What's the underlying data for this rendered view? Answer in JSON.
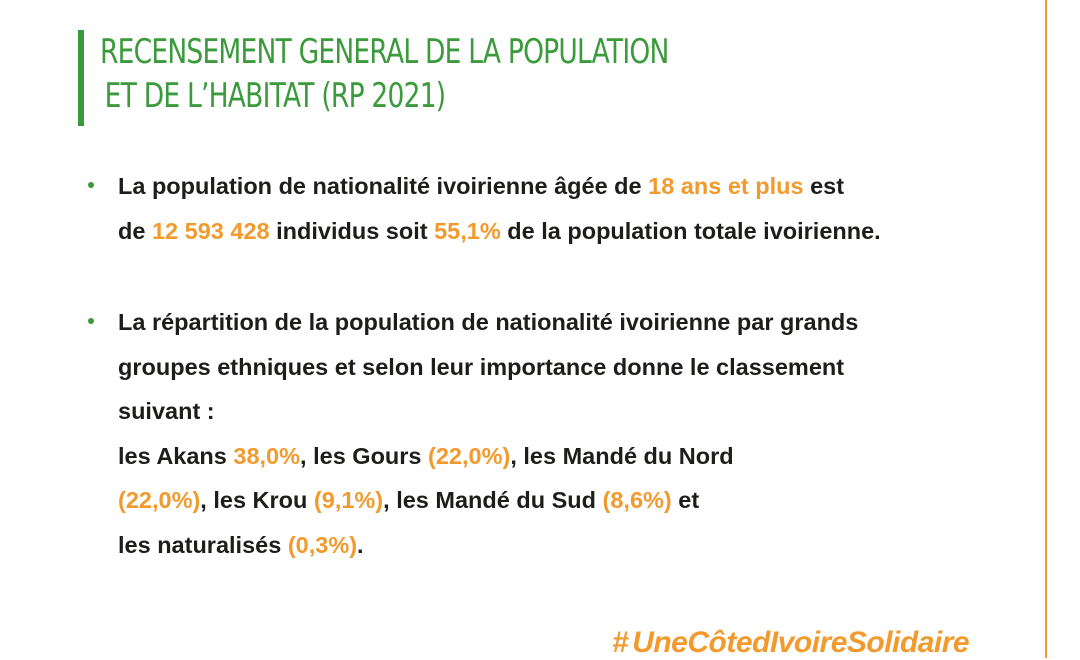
{
  "header": {
    "title_line_1": "RECENSEMENT GENERAL DE LA POPULATION",
    "title_line_2": "ET DE L’HABITAT (RP 2021)"
  },
  "bullet_1": {
    "l1_a": "La population de nationalité ivoirienne âgée de ",
    "l1_b": "18 ans et plus",
    "l1_c": " est",
    "l2_a": "de ",
    "l2_b": "12 593 428",
    "l2_c": " individus soit ",
    "l2_d": "55,1%",
    "l2_e": " de la population totale ivoirienne."
  },
  "bullet_2": {
    "l1": "La répartition de la population de nationalité ivoirienne par grands",
    "l2": "groupes ethniques et selon leur importance donne le classement",
    "l3": "suivant :",
    "l4_a": "les Akans ",
    "l4_b": "38,0%",
    "l4_c": ", les Gours ",
    "l4_d": "(22,0%)",
    "l4_e": ", les Mandé du Nord",
    "l5_a": "(22,0%)",
    "l5_b": ", les Krou ",
    "l5_c": "(9,1%)",
    "l5_d": ", les Mandé du Sud ",
    "l5_e": "(8,6%)",
    "l5_f": " et",
    "l6_a": "les naturalisés ",
    "l6_b": "(0,3%)",
    "l6_c": "."
  },
  "footer": {
    "hashtag_symbol": "#",
    "hashtag_text": "UneCôtedIvoireSolidaire"
  },
  "colors": {
    "accent_orange": "#f29a2e",
    "accent_green": "#3a9a3c",
    "text": "#1d1d1b"
  },
  "icons": {
    "bullet": "green-dot-icon",
    "hashtag": "hashtag-icon"
  }
}
